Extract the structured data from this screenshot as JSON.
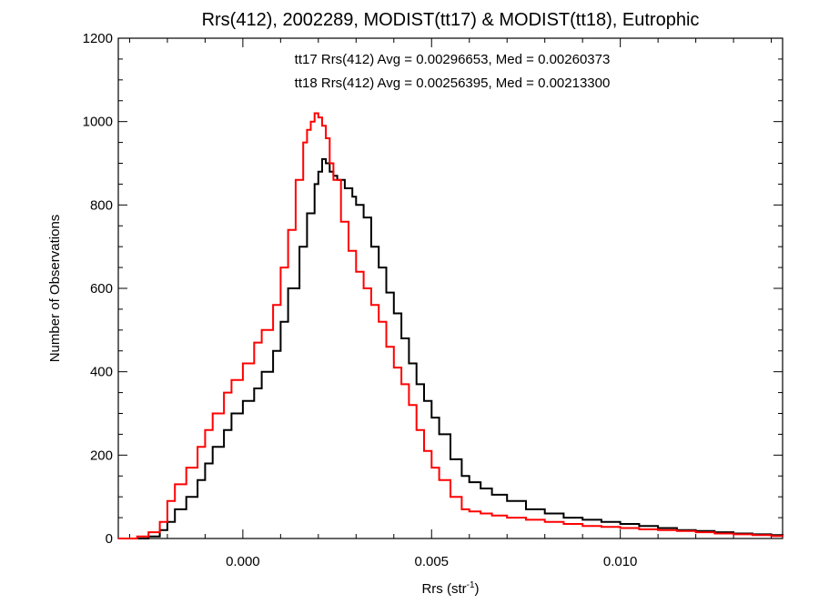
{
  "chart_data": {
    "type": "line",
    "title": "Rrs(412), 2002289, MODIST(tt17) & MODIST(tt18), Eutrophic",
    "xlabel": "Rrs (str",
    "xlabel_sup": "-1",
    "xlabel_close": ")",
    "ylabel": "Number of Observations",
    "xlim": [
      -0.0033,
      0.0143
    ],
    "ylim": [
      0,
      1200
    ],
    "x_ticks": [
      0.0,
      0.005,
      0.01
    ],
    "x_tick_labels": [
      "0.000",
      "0.005",
      "0.010"
    ],
    "y_ticks": [
      0,
      200,
      400,
      600,
      800,
      1000,
      1200
    ],
    "y_tick_labels": [
      "0",
      "200",
      "400",
      "600",
      "800",
      "1000",
      "1200"
    ],
    "grid": false,
    "annotations": [
      {
        "text": "tt17 Rrs(412) Avg = 0.00296653, Med = 0.00260373",
        "color": "#000000"
      },
      {
        "text": "tt18 Rrs(412) Avg = 0.00256395, Med = 0.00213300",
        "color": "#ff0000"
      }
    ],
    "series": [
      {
        "name": "tt17",
        "color": "#000000",
        "x": [
          -0.0033,
          -0.0028,
          -0.0025,
          -0.0022,
          -0.002,
          -0.0018,
          -0.0015,
          -0.0012,
          -0.001,
          -0.0008,
          -0.0005,
          -0.0003,
          0.0,
          0.0003,
          0.0005,
          0.0008,
          0.001,
          0.0012,
          0.0015,
          0.0017,
          0.0019,
          0.002,
          0.0021,
          0.0022,
          0.0023,
          0.0024,
          0.0025,
          0.0027,
          0.0029,
          0.003,
          0.0032,
          0.0034,
          0.0036,
          0.0038,
          0.004,
          0.0042,
          0.0044,
          0.0046,
          0.0048,
          0.005,
          0.0052,
          0.0055,
          0.0058,
          0.006,
          0.0063,
          0.0066,
          0.007,
          0.0075,
          0.008,
          0.0085,
          0.009,
          0.0095,
          0.01,
          0.0105,
          0.011,
          0.0115,
          0.012,
          0.0125,
          0.013,
          0.0135,
          0.014,
          0.0143
        ],
        "y": [
          0,
          0,
          5,
          20,
          40,
          70,
          100,
          140,
          180,
          220,
          260,
          300,
          330,
          360,
          400,
          450,
          520,
          600,
          700,
          780,
          850,
          880,
          910,
          900,
          880,
          870,
          860,
          840,
          820,
          800,
          770,
          700,
          650,
          590,
          540,
          480,
          420,
          370,
          330,
          290,
          250,
          190,
          150,
          135,
          120,
          105,
          90,
          70,
          60,
          50,
          45,
          40,
          35,
          30,
          25,
          20,
          18,
          15,
          12,
          10,
          8,
          6
        ]
      },
      {
        "name": "tt18",
        "color": "#ff0000",
        "x": [
          -0.0033,
          -0.003,
          -0.0028,
          -0.0025,
          -0.0022,
          -0.002,
          -0.0018,
          -0.0015,
          -0.0012,
          -0.001,
          -0.0008,
          -0.0005,
          -0.0003,
          0.0,
          0.0003,
          0.0005,
          0.0008,
          0.001,
          0.0012,
          0.0014,
          0.0016,
          0.0017,
          0.0018,
          0.0019,
          0.002,
          0.0021,
          0.0022,
          0.0023,
          0.0024,
          0.0026,
          0.0028,
          0.003,
          0.0032,
          0.0034,
          0.0036,
          0.0038,
          0.004,
          0.0042,
          0.0044,
          0.0046,
          0.0048,
          0.005,
          0.0052,
          0.0055,
          0.0058,
          0.006,
          0.0063,
          0.0066,
          0.007,
          0.0075,
          0.008,
          0.0085,
          0.009,
          0.0095,
          0.01,
          0.0105,
          0.011,
          0.0115,
          0.012,
          0.0125,
          0.013,
          0.0135,
          0.014,
          0.0143
        ],
        "y": [
          0,
          0,
          5,
          15,
          40,
          90,
          130,
          170,
          220,
          260,
          300,
          350,
          380,
          420,
          470,
          500,
          560,
          650,
          740,
          860,
          950,
          980,
          1000,
          1020,
          1010,
          990,
          960,
          900,
          860,
          760,
          690,
          640,
          600,
          560,
          520,
          460,
          410,
          370,
          320,
          260,
          210,
          170,
          140,
          100,
          70,
          65,
          60,
          55,
          50,
          45,
          40,
          35,
          30,
          28,
          25,
          22,
          20,
          18,
          15,
          12,
          10,
          8,
          6,
          5
        ]
      }
    ]
  }
}
